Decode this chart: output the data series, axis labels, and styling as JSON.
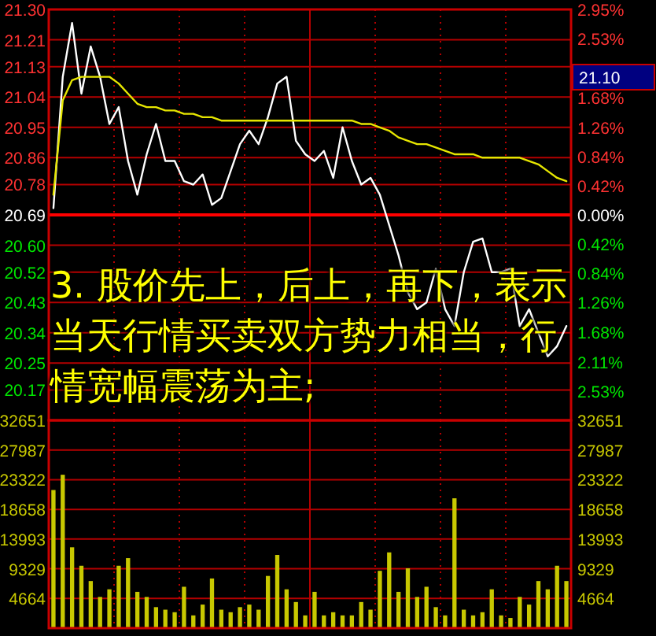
{
  "chart_data": [
    {
      "type": "line",
      "categories": [
        null,
        null,
        null,
        null,
        null,
        null,
        null,
        null,
        null,
        null,
        null,
        null,
        null,
        null,
        null,
        null,
        null,
        null,
        null,
        null,
        null,
        null,
        null,
        null,
        null,
        null,
        null,
        null,
        null,
        null,
        null,
        null,
        null,
        null,
        null,
        null,
        null,
        null,
        null,
        null,
        null,
        null,
        null,
        null,
        null,
        null,
        null,
        null,
        null,
        null,
        null,
        null,
        null,
        null,
        null,
        null
      ],
      "series": [
        {
          "color": "#ffffff",
          "values": [
            20.71,
            21.1,
            21.26,
            21.05,
            21.19,
            21.1,
            20.96,
            21.01,
            20.85,
            20.75,
            20.87,
            20.96,
            20.85,
            20.85,
            20.79,
            20.78,
            20.81,
            20.72,
            20.74,
            20.82,
            20.9,
            20.94,
            20.9,
            20.98,
            21.08,
            21.1,
            20.91,
            20.87,
            20.85,
            20.88,
            20.8,
            20.95,
            20.85,
            20.78,
            20.8,
            20.75,
            20.66,
            20.57,
            20.46,
            20.41,
            20.43,
            20.53,
            20.41,
            20.36,
            20.52,
            20.61,
            20.62,
            20.52,
            20.52,
            20.53,
            20.36,
            20.41,
            20.34,
            20.27,
            20.3,
            20.36
          ]
        },
        {
          "color": "#e6e600",
          "values": [
            20.75,
            21.03,
            21.09,
            21.1,
            21.1,
            21.1,
            21.1,
            21.08,
            21.05,
            21.02,
            21.01,
            21.01,
            21.0,
            21.0,
            20.99,
            20.99,
            20.98,
            20.98,
            20.97,
            20.97,
            20.97,
            20.97,
            20.97,
            20.97,
            20.97,
            20.97,
            20.97,
            20.97,
            20.97,
            20.97,
            20.97,
            20.97,
            20.97,
            20.96,
            20.96,
            20.95,
            20.94,
            20.92,
            20.91,
            20.9,
            20.9,
            20.89,
            20.88,
            20.87,
            20.87,
            20.87,
            20.86,
            20.86,
            20.86,
            20.86,
            20.86,
            20.85,
            20.84,
            20.82,
            20.8,
            20.79
          ]
        }
      ],
      "ylim": [
        20.08,
        21.3
      ],
      "yticks": [
        {
          "value": 21.3,
          "label": "21.30"
        },
        21.21,
        21.13,
        21.04,
        20.95,
        20.86,
        20.78,
        20.69,
        {
          "value": 20.6,
          "label": "20.60"
        },
        20.52,
        20.43,
        20.34,
        20.25,
        20.17
      ],
      "y2lim": [
        -2.95,
        2.95
      ],
      "y2ticks": [
        {
          "value": 2.95,
          "label": "2.95%"
        },
        {
          "value": 2.53,
          "label": "2.53%"
        },
        {
          "value": 1.68,
          "label": "1.68%"
        },
        {
          "value": 1.26,
          "label": "1.26%"
        },
        {
          "value": 0.84,
          "label": "0.84%"
        },
        {
          "value": 0.42,
          "label": "0.42%"
        },
        {
          "value": 0,
          "label": "0.00%"
        },
        {
          "value": -0.42,
          "label": "0.42%"
        },
        {
          "value": -0.84,
          "label": "0.84%"
        },
        {
          "value": -1.26,
          "label": "1.26%"
        },
        {
          "value": -1.68,
          "label": "1.68%"
        },
        {
          "value": -2.11,
          "label": "2.11%"
        },
        {
          "value": -2.53,
          "label": "2.53%"
        }
      ],
      "ref_lines": [
        {
          "axis": "y",
          "value": 20.69,
          "color": "#ff0000"
        }
      ],
      "annotations": [
        "3. 股价先上，后上，再下，表示当天行情买卖双方势力相当，行情宽幅震荡为主;",
        "21.10"
      ],
      "grid": true
    },
    {
      "type": "bar",
      "categories": [
        null,
        null,
        null,
        null,
        null,
        null,
        null,
        null,
        null,
        null,
        null,
        null,
        null,
        null,
        null,
        null,
        null,
        null,
        null,
        null,
        null,
        null,
        null,
        null,
        null,
        null,
        null,
        null,
        null,
        null,
        null,
        null,
        null,
        null,
        null,
        null,
        null,
        null,
        null,
        null,
        null,
        null,
        null,
        null,
        null,
        null,
        null,
        null,
        null,
        null,
        null,
        null,
        null,
        null,
        null,
        null
      ],
      "values": [
        21700,
        24100,
        12700,
        9800,
        7400,
        4900,
        6100,
        9800,
        11000,
        5700,
        4900,
        3300,
        2900,
        2500,
        6500,
        2000,
        3700,
        7800,
        2900,
        2500,
        3300,
        3700,
        2900,
        8200,
        11500,
        6100,
        4100,
        2000,
        5700,
        2000,
        2500,
        2000,
        2000,
        4100,
        2900,
        9000,
        11900,
        5700,
        9400,
        4900,
        6500,
        3300,
        2000,
        20400,
        2900,
        2000,
        2500,
        6100,
        2000,
        1600,
        4900,
        3700,
        7400,
        6100,
        9800,
        7400
      ],
      "color": "#c8c800",
      "ylim": [
        0,
        32651
      ],
      "yticks": [
        4664,
        9329,
        13993,
        18658,
        23322,
        27987,
        32651
      ],
      "y2lim": [
        0,
        32651
      ],
      "y2ticks": [
        4664,
        9329,
        13993,
        18658,
        23322,
        27987,
        32651
      ],
      "grid": true
    }
  ]
}
